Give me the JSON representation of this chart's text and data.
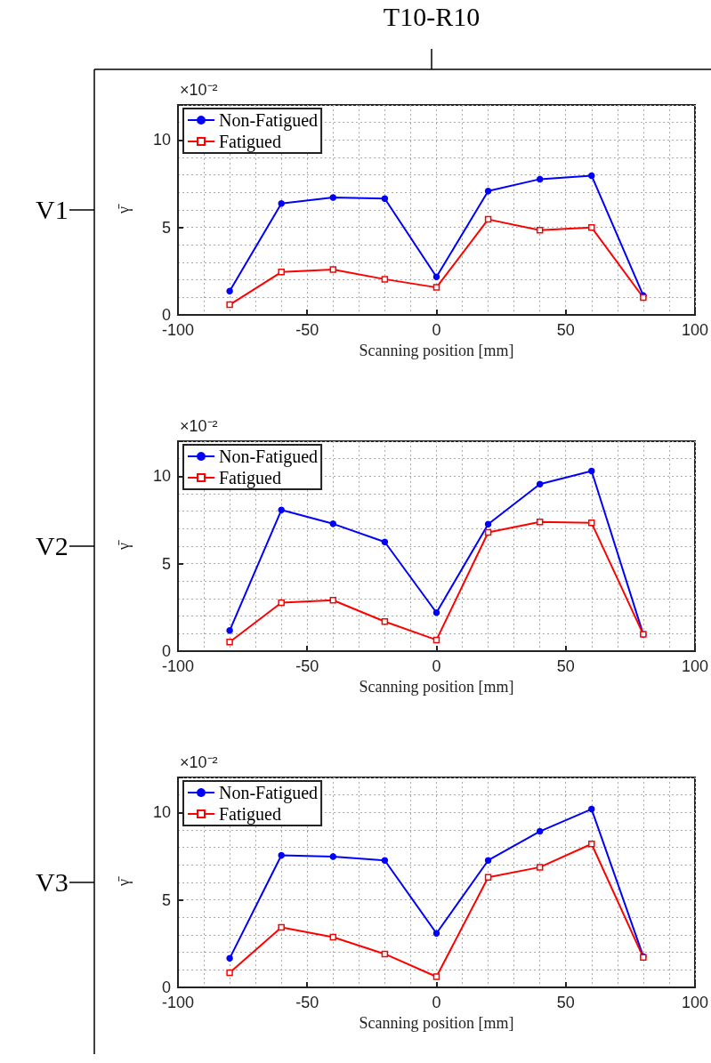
{
  "chart_data": [
    {
      "type": "line",
      "title": "V1",
      "xlabel": "Scanning position [mm]",
      "ylabel": "γ̄",
      "annotations": [
        "×10⁻²",
        "T10-R10"
      ],
      "x": [
        -80,
        -60,
        -40,
        -20,
        0,
        20,
        40,
        60,
        80
      ],
      "series": [
        {
          "name": "Non-Fatigued",
          "color": "#0000ff",
          "marker": "circle",
          "values": [
            1.36,
            6.37,
            6.71,
            6.65,
            2.17,
            7.08,
            7.76,
            7.96,
            1.11
          ]
        },
        {
          "name": "Fatigued",
          "color": "#ff0000",
          "marker": "square",
          "values": [
            0.58,
            2.45,
            2.59,
            2.04,
            1.57,
            5.46,
            4.84,
            5.0,
            0.99
          ]
        }
      ],
      "xlim": [
        -100,
        100
      ],
      "xticks": [
        -100,
        -50,
        0,
        50,
        100
      ],
      "ylim": [
        0,
        12
      ],
      "yticks": [
        0,
        5,
        10
      ],
      "grid": true,
      "legend": "top left"
    },
    {
      "type": "line",
      "title": "V2",
      "xlabel": "Scanning position [mm]",
      "ylabel": "γ̄",
      "annotations": [
        "×10⁻²"
      ],
      "x": [
        -80,
        -60,
        -40,
        -20,
        0,
        20,
        40,
        60,
        80
      ],
      "series": [
        {
          "name": "Non-Fatigued",
          "color": "#0000ff",
          "marker": "circle",
          "values": [
            1.18,
            8.07,
            7.28,
            6.24,
            2.2,
            7.26,
            9.55,
            10.3,
            0.96
          ]
        },
        {
          "name": "Fatigued",
          "color": "#ff0000",
          "marker": "square",
          "values": [
            0.52,
            2.77,
            2.91,
            1.69,
            0.64,
            6.79,
            7.39,
            7.33,
            0.96
          ]
        }
      ],
      "xlim": [
        -100,
        100
      ],
      "xticks": [
        -100,
        -50,
        0,
        50,
        100
      ],
      "ylim": [
        0,
        12
      ],
      "yticks": [
        0,
        5,
        10
      ],
      "grid": true,
      "legend": "top left"
    },
    {
      "type": "line",
      "title": "V3",
      "xlabel": "Scanning position [mm]",
      "ylabel": "γ̄",
      "annotations": [
        "×10⁻²"
      ],
      "x": [
        -80,
        -60,
        -40,
        -20,
        0,
        20,
        40,
        60,
        80
      ],
      "series": [
        {
          "name": "Non-Fatigued",
          "color": "#0000ff",
          "marker": "circle",
          "values": [
            1.66,
            7.55,
            7.48,
            7.26,
            3.09,
            7.26,
            8.92,
            10.19,
            1.77
          ]
        },
        {
          "name": "Fatigued",
          "color": "#ff0000",
          "marker": "square",
          "values": [
            0.84,
            3.43,
            2.87,
            1.91,
            0.61,
            6.29,
            6.87,
            8.2,
            1.71
          ]
        }
      ],
      "xlim": [
        -100,
        100
      ],
      "xticks": [
        -100,
        -50,
        0,
        50,
        100
      ],
      "ylim": [
        0,
        12
      ],
      "yticks": [
        0,
        5,
        10
      ],
      "grid": true,
      "legend": "top left"
    }
  ]
}
